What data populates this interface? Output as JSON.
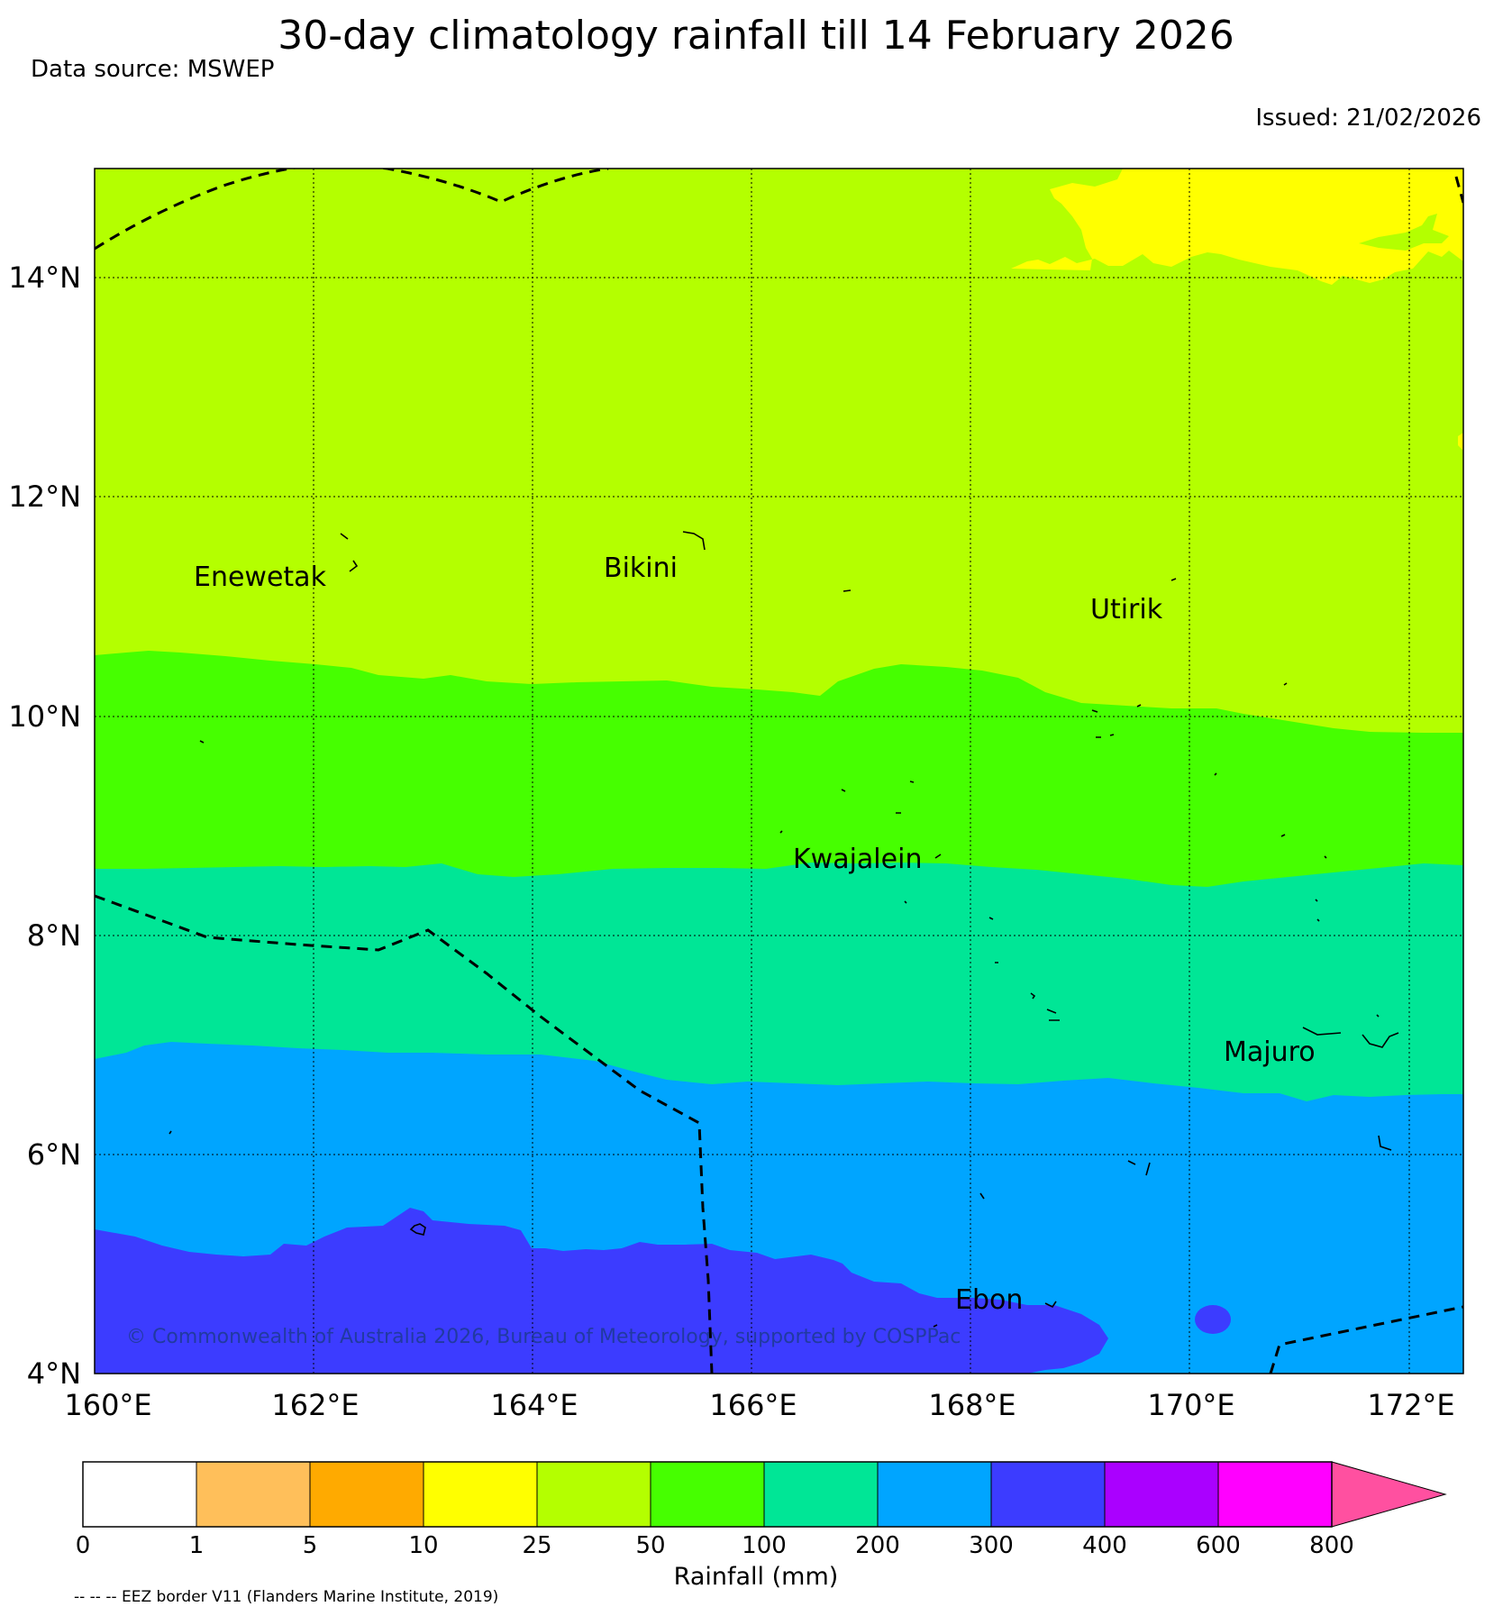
{
  "title": "30-day climatology rainfall till 14 February 2026",
  "data_source": "Data source: MSWEP",
  "issued": "Issued: 21/02/2026",
  "copyright": "© Commonwealth of Australia 2026, Bureau of Meteorology, supported by COSPPac",
  "map": {
    "lon_range": [
      160,
      172.5
    ],
    "lat_range": [
      4,
      15
    ],
    "lon_ticks": [
      "160°E",
      "162°E",
      "164°E",
      "166°E",
      "168°E",
      "170°E",
      "172°E"
    ],
    "lat_ticks": [
      "4°N",
      "6°N",
      "8°N",
      "10°N",
      "12°N",
      "14°N"
    ],
    "gridlines": true,
    "places": [
      "Enewetak",
      "Bikini",
      "Utirik",
      "Kwajalein",
      "Majuro",
      "Ebon"
    ]
  },
  "colorbar": {
    "title": "Rainfall (mm)",
    "ticks": [
      "0",
      "1",
      "5",
      "10",
      "25",
      "50",
      "100",
      "200",
      "300",
      "400",
      "600",
      "800"
    ],
    "colors": [
      "#ffffff",
      "#ffbf5a",
      "#ffaa00",
      "#ffff00",
      "#b4ff00",
      "#46ff00",
      "#00e696",
      "#00a5ff",
      "#3c3cff",
      "#aa00ff",
      "#ff00ff",
      "#ff50a0"
    ],
    "extend": "max"
  },
  "legend_note": "-- -- -- EEZ border V11 (Flanders Marine Institute, 2019)"
}
